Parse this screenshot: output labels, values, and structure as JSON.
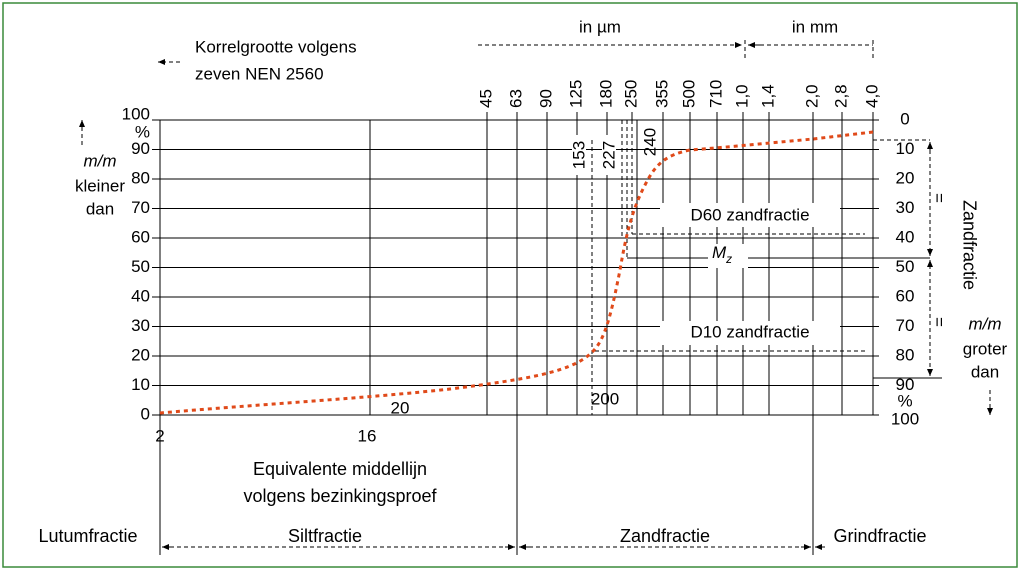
{
  "header": {
    "micron_label": "in µm",
    "mm_label": "in mm",
    "sieve_title": [
      "Korrelgrootte volgens",
      "zeven NEN 2560"
    ]
  },
  "top_ticks": [
    "45",
    "63",
    "90",
    "125",
    "180",
    "250",
    "355",
    "500",
    "710",
    "1,0",
    "1,4",
    "2,0",
    "2,8",
    "4,0"
  ],
  "left_axis": {
    "ticks": [
      "100",
      "%",
      "90",
      "80",
      "70",
      "60",
      "50",
      "40",
      "30",
      "20",
      "10",
      "0"
    ],
    "caption": [
      "m/m",
      "kleiner",
      "dan"
    ]
  },
  "right_axis": {
    "ticks": [
      "0",
      "10",
      "20",
      "30",
      "40",
      "50",
      "60",
      "70",
      "80",
      "90",
      "%",
      "100"
    ],
    "title": "Zandfractie",
    "caption": [
      "m/m",
      "groter",
      "dan"
    ],
    "equal_marks": [
      "=",
      "="
    ]
  },
  "inner_labels": {
    "d153": "153",
    "d227": "227",
    "d240": "240",
    "d60": "D60 zandfractie",
    "d10": "D10 zandfractie",
    "mz": "M",
    "mz_sub": "z"
  },
  "bottom": {
    "ticks": [
      "2",
      "16"
    ],
    "inner_ticks": [
      "20",
      "200"
    ],
    "caption": [
      "Equivalente middellijn",
      "volgens bezinkingsproef"
    ]
  },
  "fractions": [
    "Lutumfractie",
    "Siltfractie",
    "Zandfractie",
    "Grindfractie"
  ]
}
